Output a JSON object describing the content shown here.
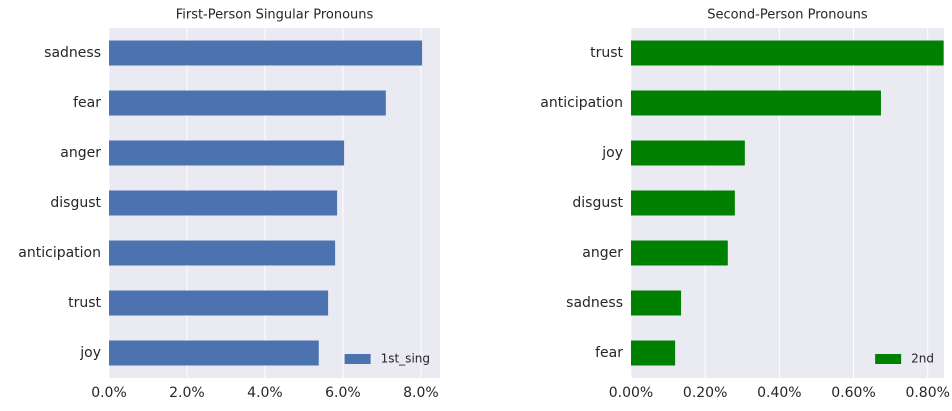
{
  "chart_data": [
    {
      "type": "barh",
      "title": "First-Person Singular Pronouns",
      "categories": [
        "sadness",
        "fear",
        "anger",
        "disgust",
        "anticipation",
        "trust",
        "joy"
      ],
      "series": [
        {
          "name": "1st_sing",
          "color": "#4c72b0",
          "values": [
            8.03,
            7.1,
            6.03,
            5.85,
            5.8,
            5.62,
            5.38
          ]
        }
      ],
      "xlim": [
        0,
        8.49
      ],
      "xticks": [
        {
          "value": 0,
          "label": "0.0%"
        },
        {
          "value": 2,
          "label": "2.0%"
        },
        {
          "value": 4,
          "label": "4.0%"
        },
        {
          "value": 6,
          "label": "6.0%"
        },
        {
          "value": 8,
          "label": "8.0%"
        }
      ],
      "grid": true,
      "legend": "lower right"
    },
    {
      "type": "barh",
      "title": "Second-Person Pronouns",
      "categories": [
        "trust",
        "anticipation",
        "joy",
        "disgust",
        "anger",
        "sadness",
        "fear"
      ],
      "series": [
        {
          "name": "2nd",
          "color": "#008000",
          "values": [
            0.843,
            0.674,
            0.307,
            0.28,
            0.261,
            0.135,
            0.119
          ]
        }
      ],
      "xlim": [
        0,
        0.844
      ],
      "xticks": [
        {
          "value": 0,
          "label": "0.00%"
        },
        {
          "value": 0.2,
          "label": "0.20%"
        },
        {
          "value": 0.4,
          "label": "0.40%"
        },
        {
          "value": 0.6,
          "label": "0.60%"
        },
        {
          "value": 0.8,
          "label": "0.80%"
        }
      ],
      "grid": true,
      "legend": "lower right"
    }
  ]
}
